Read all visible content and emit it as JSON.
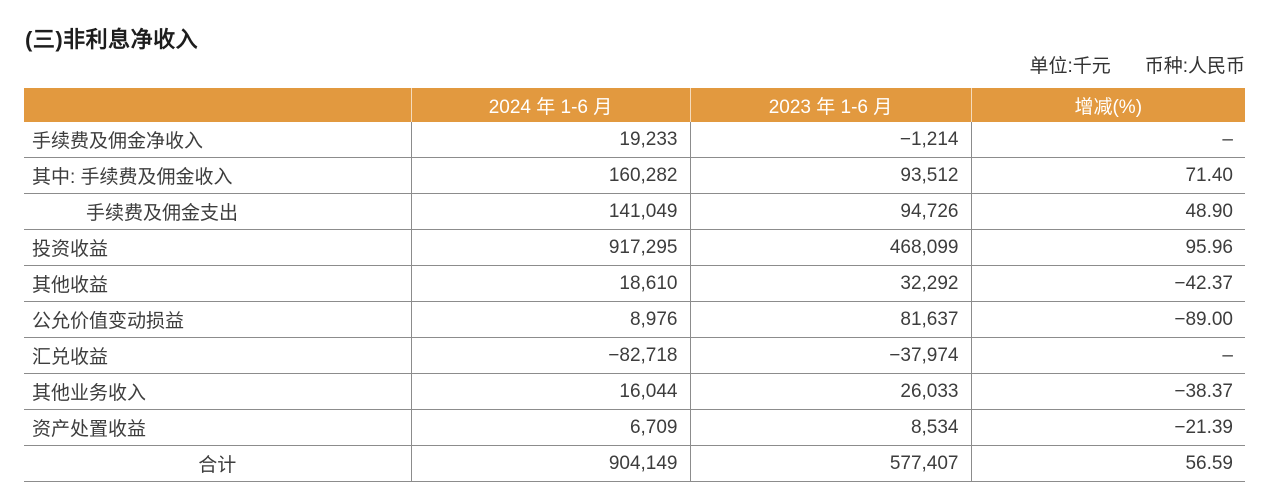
{
  "page": {
    "title": "(三)非利息净收入",
    "unit_label": "单位:千元",
    "currency_label": "币种:人民币"
  },
  "table": {
    "header": {
      "col_item": "",
      "col_2024": "2024 年 1-6 月",
      "col_2023": "2023 年 1-6 月",
      "col_change": "增减(%)"
    },
    "rows": [
      {
        "label": "手续费及佣金净收入",
        "y2024": "19,233",
        "y2023": "−1,214",
        "change": "–"
      },
      {
        "label": "其中: 手续费及佣金收入",
        "y2024": "160,282",
        "y2023": "93,512",
        "change": "71.40"
      },
      {
        "label": "手续费及佣金支出",
        "y2024": "141,049",
        "y2023": "94,726",
        "change": "48.90"
      },
      {
        "label": "投资收益",
        "y2024": "917,295",
        "y2023": "468,099",
        "change": "95.96"
      },
      {
        "label": "其他收益",
        "y2024": "18,610",
        "y2023": "32,292",
        "change": "−42.37"
      },
      {
        "label": "公允价值变动损益",
        "y2024": "8,976",
        "y2023": "81,637",
        "change": "−89.00"
      },
      {
        "label": "汇兑收益",
        "y2024": "−82,718",
        "y2023": "−37,974",
        "change": "–"
      },
      {
        "label": "其他业务收入",
        "y2024": "16,044",
        "y2023": "26,033",
        "change": "−38.37"
      },
      {
        "label": "资产处置收益",
        "y2024": "6,709",
        "y2023": "8,534",
        "change": "−21.39"
      },
      {
        "label": "合计",
        "y2024": "904,149",
        "y2023": "577,407",
        "change": "56.59"
      }
    ],
    "colors": {
      "header_bg": "#E2993F",
      "header_text": "#FFFFFF",
      "grid_line": "#8C8C8C",
      "body_text": "#3D3D3D"
    }
  }
}
